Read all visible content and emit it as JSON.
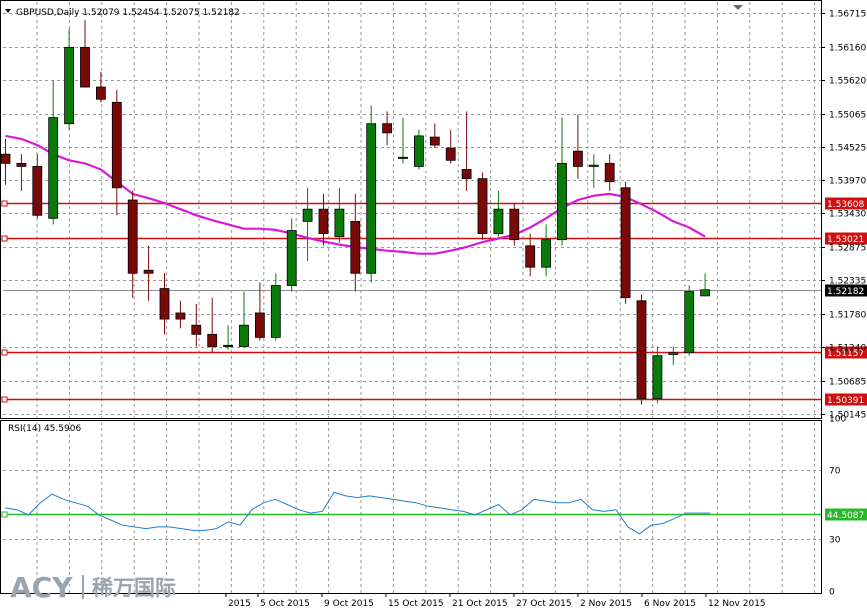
{
  "header": {
    "symbol_line": "GBPUSD,Daily  1.52079 1.52454 1.52075 1.52182"
  },
  "rsi_panel": {
    "label": "RSI(14) 45.5906"
  },
  "watermark": {
    "brand": "ACY",
    "cn": "稀万国际"
  },
  "colors": {
    "bull": "#0a7a0a",
    "bear": "#7a0a0a",
    "ma": "#d81ad8",
    "hline": "#d01010",
    "rsi": "#1f7fd0",
    "rsi_level": "#2ab82a",
    "grid": "#9a9a9a"
  },
  "chart_data": [
    {
      "type": "candlestick",
      "title": "GBPUSD,Daily",
      "y_ticks": [
        "1.56715",
        "1.56160",
        "1.55620",
        "1.55065",
        "1.54525",
        "1.53970",
        "1.53430",
        "1.52875",
        "1.52335",
        "1.51780",
        "1.51240",
        "1.50685",
        "1.50145"
      ],
      "ylim": [
        1.5008,
        1.5686
      ],
      "x_ticks": [
        "2015",
        "5 Oct 2015",
        "9 Oct 2015",
        "15 Oct 2015",
        "21 Oct 2015",
        "27 Oct 2015",
        "2 Nov 2015",
        "6 Nov 2015",
        "12 Nov 2015"
      ],
      "current_price": "1.52182",
      "current_price_value": 1.52182,
      "horizontal_lines": [
        {
          "value": 1.53608,
          "label": "1.53608"
        },
        {
          "value": 1.53021,
          "label": "1.53021"
        },
        {
          "value": 1.51157,
          "label": "1.51157"
        },
        {
          "value": 1.50391,
          "label": "1.50391"
        }
      ],
      "candles": [
        {
          "o": 1.544,
          "h": 1.5465,
          "l": 1.539,
          "c": 1.5425
        },
        {
          "o": 1.5425,
          "h": 1.544,
          "l": 1.538,
          "c": 1.542
        },
        {
          "o": 1.542,
          "h": 1.544,
          "l": 1.5335,
          "c": 1.534
        },
        {
          "o": 1.5335,
          "h": 1.556,
          "l": 1.5325,
          "c": 1.55
        },
        {
          "o": 1.549,
          "h": 1.5645,
          "l": 1.548,
          "c": 1.5615
        },
        {
          "o": 1.5615,
          "h": 1.566,
          "l": 1.5555,
          "c": 1.555
        },
        {
          "o": 1.555,
          "h": 1.5575,
          "l": 1.5525,
          "c": 1.553
        },
        {
          "o": 1.5525,
          "h": 1.5545,
          "l": 1.534,
          "c": 1.5385
        },
        {
          "o": 1.5365,
          "h": 1.538,
          "l": 1.5205,
          "c": 1.5245
        },
        {
          "o": 1.525,
          "h": 1.529,
          "l": 1.52,
          "c": 1.5245
        },
        {
          "o": 1.522,
          "h": 1.5245,
          "l": 1.5145,
          "c": 1.517
        },
        {
          "o": 1.518,
          "h": 1.52,
          "l": 1.5155,
          "c": 1.517
        },
        {
          "o": 1.516,
          "h": 1.5195,
          "l": 1.5125,
          "c": 1.5145
        },
        {
          "o": 1.5145,
          "h": 1.5205,
          "l": 1.5115,
          "c": 1.5125
        },
        {
          "o": 1.5127,
          "h": 1.516,
          "l": 1.512,
          "c": 1.5127
        },
        {
          "o": 1.5125,
          "h": 1.5215,
          "l": 1.5125,
          "c": 1.516
        },
        {
          "o": 1.518,
          "h": 1.523,
          "l": 1.5135,
          "c": 1.514
        },
        {
          "o": 1.514,
          "h": 1.5245,
          "l": 1.5135,
          "c": 1.5225
        },
        {
          "o": 1.5225,
          "h": 1.5335,
          "l": 1.5215,
          "c": 1.5315
        },
        {
          "o": 1.533,
          "h": 1.5385,
          "l": 1.5265,
          "c": 1.535
        },
        {
          "o": 1.535,
          "h": 1.5375,
          "l": 1.529,
          "c": 1.531
        },
        {
          "o": 1.5305,
          "h": 1.5385,
          "l": 1.5295,
          "c": 1.535
        },
        {
          "o": 1.533,
          "h": 1.5375,
          "l": 1.5215,
          "c": 1.5245
        },
        {
          "o": 1.5245,
          "h": 1.552,
          "l": 1.523,
          "c": 1.549
        },
        {
          "o": 1.549,
          "h": 1.551,
          "l": 1.5455,
          "c": 1.5475
        },
        {
          "o": 1.5435,
          "h": 1.55,
          "l": 1.5425,
          "c": 1.5435
        },
        {
          "o": 1.542,
          "h": 1.548,
          "l": 1.5415,
          "c": 1.547
        },
        {
          "o": 1.5468,
          "h": 1.549,
          "l": 1.545,
          "c": 1.5455
        },
        {
          "o": 1.545,
          "h": 1.548,
          "l": 1.5425,
          "c": 1.543
        },
        {
          "o": 1.5415,
          "h": 1.551,
          "l": 1.538,
          "c": 1.54
        },
        {
          "o": 1.54,
          "h": 1.541,
          "l": 1.53,
          "c": 1.531
        },
        {
          "o": 1.531,
          "h": 1.538,
          "l": 1.5305,
          "c": 1.535
        },
        {
          "o": 1.535,
          "h": 1.536,
          "l": 1.529,
          "c": 1.53
        },
        {
          "o": 1.529,
          "h": 1.531,
          "l": 1.524,
          "c": 1.5255
        },
        {
          "o": 1.5255,
          "h": 1.5325,
          "l": 1.524,
          "c": 1.53
        },
        {
          "o": 1.53,
          "h": 1.55,
          "l": 1.529,
          "c": 1.5425
        },
        {
          "o": 1.5445,
          "h": 1.5505,
          "l": 1.54,
          "c": 1.542
        },
        {
          "o": 1.542,
          "h": 1.544,
          "l": 1.5385,
          "c": 1.5422
        },
        {
          "o": 1.5425,
          "h": 1.544,
          "l": 1.538,
          "c": 1.5395
        },
        {
          "o": 1.5385,
          "h": 1.5395,
          "l": 1.5195,
          "c": 1.5205
        },
        {
          "o": 1.52,
          "h": 1.521,
          "l": 1.503,
          "c": 1.504
        },
        {
          "o": 1.504,
          "h": 1.5125,
          "l": 1.5032,
          "c": 1.511
        },
        {
          "o": 1.5112,
          "h": 1.5125,
          "l": 1.5095,
          "c": 1.5115
        },
        {
          "o": 1.5115,
          "h": 1.5225,
          "l": 1.511,
          "c": 1.5215
        },
        {
          "o": 1.5208,
          "h": 1.5245,
          "l": 1.5207,
          "c": 1.5218
        }
      ],
      "moving_average": [
        1.547,
        1.5465,
        1.5455,
        1.544,
        1.543,
        1.5425,
        1.5415,
        1.5395,
        1.5375,
        1.5368,
        1.536,
        1.535,
        1.534,
        1.5332,
        1.5325,
        1.5318,
        1.5318,
        1.5316,
        1.531,
        1.5303,
        1.5297,
        1.5292,
        1.5288,
        1.5285,
        1.5282,
        1.528,
        1.5277,
        1.5277,
        1.5282,
        1.5288,
        1.5296,
        1.5302,
        1.5308,
        1.532,
        1.5335,
        1.5352,
        1.5365,
        1.5372,
        1.5375,
        1.537,
        1.5358,
        1.5345,
        1.533,
        1.532,
        1.5305
      ]
    },
    {
      "type": "line",
      "title": "RSI(14) 45.5906",
      "y_ticks": [
        "100",
        "70",
        "30",
        "0"
      ],
      "ylim": [
        0,
        100
      ],
      "level_label": "44.5087",
      "level": 44.5087,
      "values": [
        48,
        47,
        44,
        51,
        56,
        53,
        51,
        49,
        44,
        41,
        38,
        37,
        36,
        37,
        37,
        36,
        35,
        35,
        36,
        40,
        38,
        47,
        51,
        53,
        50,
        47,
        45,
        46,
        57,
        55,
        54,
        55,
        54,
        53,
        52,
        51,
        49,
        48,
        47,
        46,
        44,
        47,
        50,
        44,
        47,
        53,
        52,
        51,
        51,
        53,
        47,
        46,
        47,
        37,
        33,
        38,
        39,
        42,
        45,
        45,
        45
      ]
    }
  ]
}
